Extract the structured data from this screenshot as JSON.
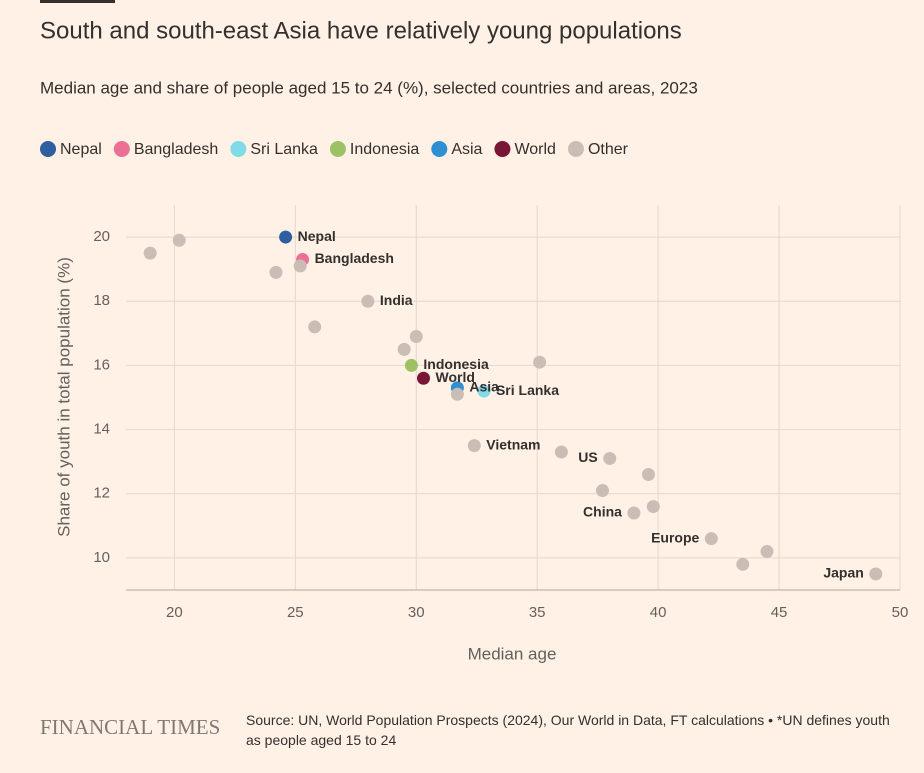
{
  "chart_data": {
    "type": "scatter",
    "title": "South and south-east Asia have relatively young populations",
    "subtitle": "Median age and share of people aged 15 to 24 (%), selected countries and areas, 2023",
    "x_label": "Median age",
    "y_label": "Share of youth in total population (%)",
    "source": "Source: UN, World Population Prospects (2024), Our World in Data, FT calculations • *UN defines youth as people aged 15 to 24",
    "brand": "FINANCIAL TIMES",
    "xlim": [
      18,
      50
    ],
    "xticks": [
      20,
      25,
      30,
      35,
      40,
      45,
      50
    ],
    "ylim": [
      9,
      21
    ],
    "yticks": [
      10,
      12,
      14,
      16,
      18,
      20
    ],
    "grid": true,
    "series": [
      {
        "name": "Nepal",
        "color": "#2e5f9e",
        "x": [
          24.6
        ],
        "values": [
          20.0
        ]
      },
      {
        "name": "Bangladesh",
        "color": "#ec6f95",
        "x": [
          25.3
        ],
        "values": [
          19.3
        ]
      },
      {
        "name": "Sri Lanka",
        "color": "#80dbe8",
        "x": [
          32.8
        ],
        "values": [
          15.2
        ]
      },
      {
        "name": "Indonesia",
        "color": "#9dc266",
        "x": [
          29.8
        ],
        "values": [
          16.0
        ]
      },
      {
        "name": "Asia",
        "color": "#2e8fd2",
        "x": [
          31.7
        ],
        "values": [
          15.3
        ]
      },
      {
        "name": "World",
        "color": "#7b1535",
        "x": [
          30.3
        ],
        "values": [
          15.6
        ]
      },
      {
        "name": "Other",
        "color": "#c9bdb6",
        "x": [
          28.0,
          32.4,
          38.0,
          39.0,
          42.2,
          49.0,
          19.0,
          20.2,
          24.2,
          25.2,
          25.8,
          30.0,
          29.5,
          35.1,
          31.7,
          36.0,
          39.6,
          37.7,
          39.8,
          43.5,
          44.5
        ],
        "values": [
          18.0,
          13.5,
          13.1,
          11.4,
          10.6,
          9.5,
          19.5,
          19.9,
          18.9,
          19.1,
          17.2,
          16.9,
          16.5,
          16.1,
          15.1,
          13.3,
          12.6,
          12.1,
          11.6,
          9.8,
          10.2
        ],
        "point_labels": [
          "India",
          "Vietnam",
          "US",
          "China",
          "Europe",
          "Japan",
          null,
          null,
          null,
          null,
          null,
          null,
          null,
          null,
          null,
          null,
          null,
          null,
          null,
          null,
          null
        ]
      }
    ]
  }
}
